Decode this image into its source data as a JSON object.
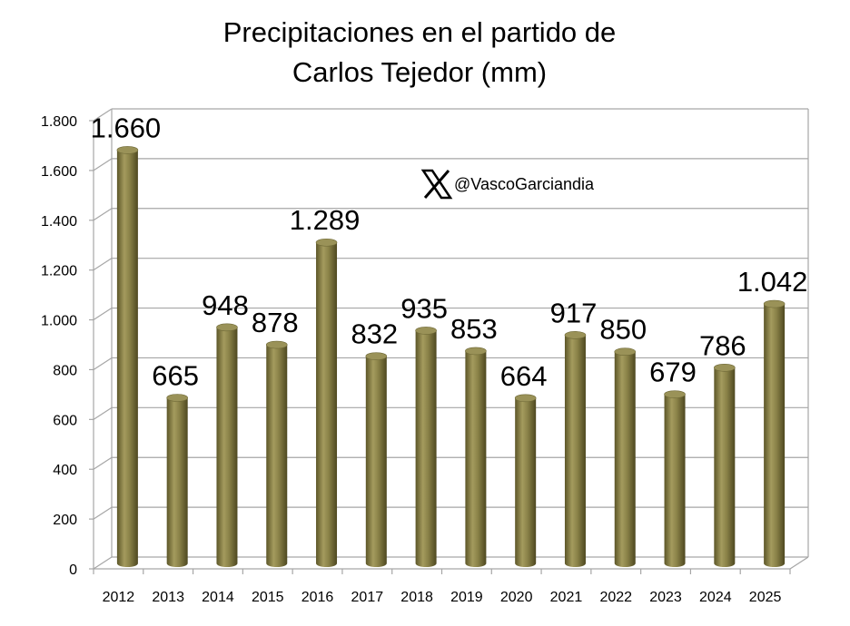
{
  "chart_data": {
    "type": "bar",
    "title": [
      "Precipitaciones en el partido de",
      "Carlos Tejedor (mm)"
    ],
    "categories": [
      "2012",
      "2013",
      "2014",
      "2015",
      "2016",
      "2017",
      "2018",
      "2019",
      "2020",
      "2021",
      "2022",
      "2023",
      "2024",
      "2025"
    ],
    "values": [
      1660,
      665,
      948,
      878,
      1289,
      832,
      935,
      853,
      664,
      917,
      850,
      679,
      786,
      1042
    ],
    "data_labels": [
      "1.660",
      "665",
      "948",
      "878",
      "1.289",
      "832",
      "935",
      "853",
      "664",
      "917",
      "850",
      "679",
      "786",
      "1.042"
    ],
    "ylim": [
      0,
      1800
    ],
    "yticks": [
      0,
      200,
      400,
      600,
      800,
      1000,
      1200,
      1400,
      1600,
      1800
    ],
    "ytick_labels": [
      "0",
      "200",
      "400",
      "600",
      "800",
      "1.000",
      "1.200",
      "1.400",
      "1.600",
      "1.800"
    ],
    "xlabel": "",
    "ylabel": "",
    "grid": true,
    "legend": "none",
    "style": "3d-cylinder",
    "bar_color": "#8a8248"
  },
  "watermark": {
    "icon": "x-logo-icon",
    "handle": "@VascoGarciandia"
  }
}
